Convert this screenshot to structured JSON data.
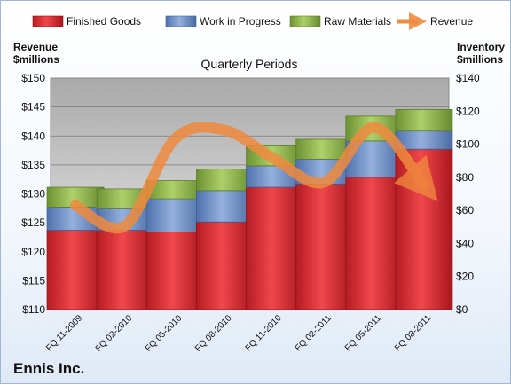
{
  "company": "Ennis Inc.",
  "colors": {
    "finished": "#d6262c",
    "wip": "#6d8fc8",
    "raw": "#8db34a",
    "revenue": "#f08a3e"
  },
  "chart_data": {
    "type": "bar",
    "stacked": true,
    "title": "Quarterly Periods",
    "categories": [
      "FQ 11-2009",
      "FQ 02-2010",
      "FQ 05-2010",
      "FQ 08-2010",
      "FQ 11-2010",
      "FQ 02-2011",
      "FQ 05-2011",
      "FQ 08-2011"
    ],
    "legend": {
      "position": "top",
      "items": [
        "Finished Goods",
        "Work in Progress",
        "Raw Materials",
        "Revenue"
      ]
    },
    "left_axis": {
      "label_line1": "Revenue",
      "label_line2": "$millions",
      "min": 110,
      "max": 150,
      "step": 5,
      "ticks": [
        "$110",
        "$115",
        "$120",
        "$125",
        "$130",
        "$135",
        "$140",
        "$145",
        "$150"
      ]
    },
    "right_axis": {
      "label_line1": "Inventory",
      "label_line2": "$millions",
      "min": 0,
      "max": 140,
      "step": 20,
      "ticks": [
        "$0",
        "$20",
        "$40",
        "$60",
        "$80",
        "$100",
        "$120",
        "$140"
      ]
    },
    "series": [
      {
        "name": "Finished Goods",
        "axis": "right",
        "values": [
          48,
          48,
          47,
          53,
          74,
          76,
          80,
          97
        ]
      },
      {
        "name": "Work in Progress",
        "axis": "right",
        "values": [
          14,
          13,
          20,
          19,
          13,
          15,
          22,
          11
        ]
      },
      {
        "name": "Raw Materials",
        "axis": "right",
        "values": [
          12,
          12,
          11,
          13,
          12,
          12,
          15,
          13
        ]
      }
    ],
    "line_series": {
      "name": "Revenue",
      "axis": "left",
      "values": [
        128,
        124.5,
        139.5,
        141,
        136,
        132,
        141.5,
        131.5
      ]
    },
    "grid": true
  }
}
